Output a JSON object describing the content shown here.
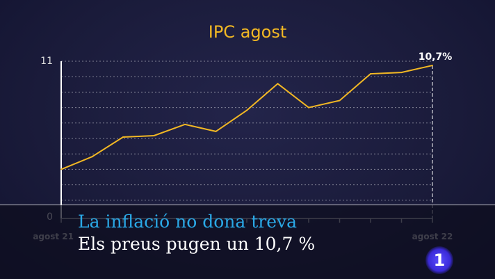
{
  "chart_data": {
    "type": "line",
    "title": "IPC agost",
    "categories": [
      "agost 21",
      "",
      "",
      "",
      "",
      "",
      "",
      "",
      "",
      "",
      "",
      "",
      "agost 22"
    ],
    "values": [
      3.3,
      4.2,
      5.6,
      5.7,
      6.5,
      6.0,
      7.5,
      9.4,
      7.7,
      8.2,
      10.1,
      10.2,
      10.7
    ],
    "ylim": [
      0,
      11
    ],
    "yticks": [
      "0",
      "11"
    ],
    "end_label": "10,7%",
    "grid": true,
    "line_color": "#f2b824"
  },
  "lower_third": {
    "headline": "La inflació no dona treva",
    "subline": "Els preus pugen un 10,7 %"
  },
  "logo": {
    "text": "1",
    "color": "#4a3cf0"
  }
}
